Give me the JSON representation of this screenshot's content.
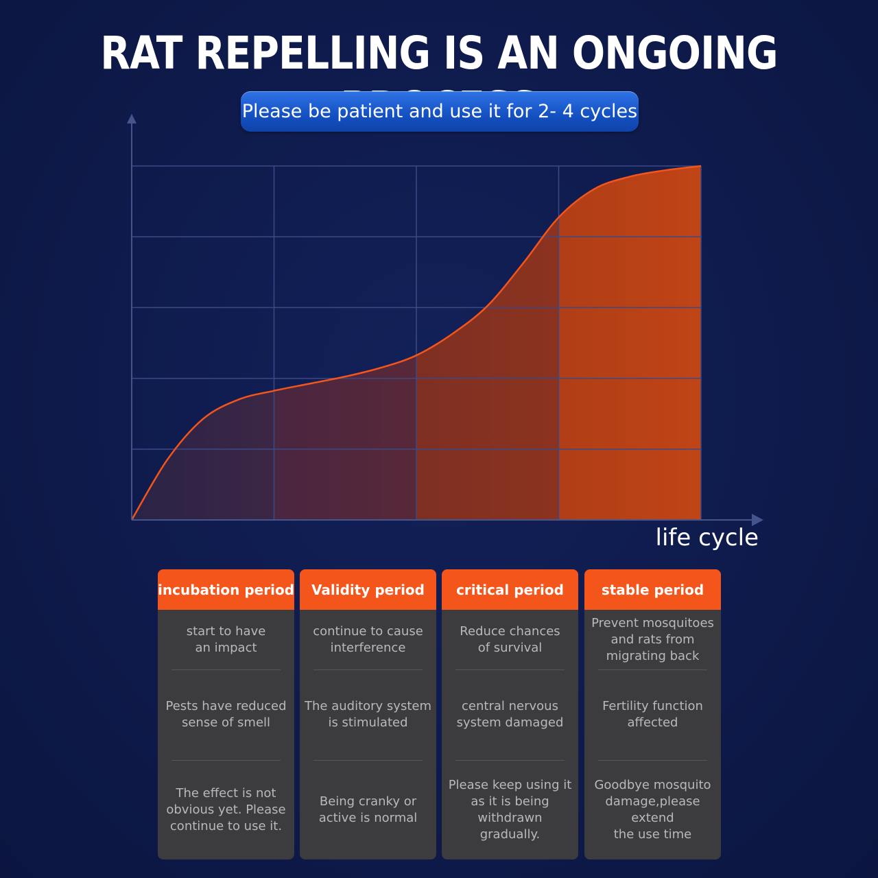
{
  "header": {
    "title": "RAT REPELLING IS AN ONGOING PROCESS",
    "subtitle": "Please be patient and use it for 2- 4 cycles"
  },
  "chart_data": {
    "type": "area",
    "title": "RAT REPELLING IS AN ONGOING PROCESS",
    "xlabel": "life cycle",
    "ylabel": "",
    "x": [
      0,
      0.25,
      0.5,
      0.75,
      1,
      1.25,
      1.5,
      1.75,
      2,
      2.25,
      2.5,
      2.75,
      3,
      3.25,
      3.5,
      3.75,
      4
    ],
    "y": [
      0,
      1.7,
      2.85,
      3.4,
      3.65,
      3.85,
      4.05,
      4.3,
      4.65,
      5.25,
      6.05,
      7.25,
      8.55,
      9.35,
      9.7,
      9.88,
      10
    ],
    "xlim": [
      0,
      4
    ],
    "ylim": [
      0,
      10
    ],
    "grid": true,
    "phases": [
      "incubation period",
      "Validity period",
      "critical period",
      "stable period"
    ],
    "colors": {
      "background": "#0e1a4a",
      "curve": "#f4551b",
      "fill_start": "#3a2540",
      "fill_end": "#c24014",
      "grid": "#3b4a86"
    }
  },
  "phases": [
    {
      "title": "incubation period",
      "rows": [
        "start to have\nan impact",
        "Pests have reduced\nsense of smell",
        "The effect is not\nobvious yet. Please\ncontinue to use it."
      ]
    },
    {
      "title": "Validity period",
      "rows": [
        "continue to cause\ninterference",
        "The auditory system\nis stimulated",
        "Being cranky or\nactive is normal"
      ]
    },
    {
      "title": "critical period",
      "rows": [
        "Reduce chances\nof survival",
        "central nervous\nsystem damaged",
        "Please keep using it\nas it is being\nwithdrawn\ngradually."
      ]
    },
    {
      "title": "stable period",
      "rows": [
        "Prevent mosquitoes\nand rats from\nmigrating back",
        "Fertility function\naffected",
        "Goodbye mosquito\ndamage,please\nextend\nthe use time"
      ]
    }
  ]
}
